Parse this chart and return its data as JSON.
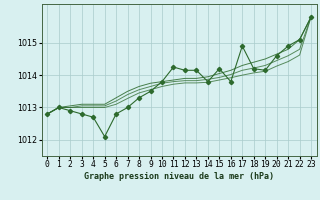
{
  "title": "Graphe pression niveau de la mer (hPa)",
  "x_values": [
    0,
    1,
    2,
    3,
    4,
    5,
    6,
    7,
    8,
    9,
    10,
    11,
    12,
    13,
    14,
    15,
    16,
    17,
    18,
    19,
    20,
    21,
    22,
    23
  ],
  "y_main": [
    1012.8,
    1013.0,
    1012.9,
    1012.8,
    1012.7,
    1012.1,
    1012.8,
    1013.0,
    1013.3,
    1013.5,
    1013.8,
    1014.25,
    1014.15,
    1014.15,
    1013.8,
    1014.2,
    1013.8,
    1014.9,
    1014.2,
    1014.15,
    1014.6,
    1014.9,
    1015.1,
    1015.8
  ],
  "y_smooth1": [
    1012.8,
    1013.0,
    1013.05,
    1013.1,
    1013.1,
    1013.1,
    1013.3,
    1013.5,
    1013.65,
    1013.75,
    1013.8,
    1013.85,
    1013.9,
    1013.9,
    1013.95,
    1014.05,
    1014.15,
    1014.3,
    1014.4,
    1014.5,
    1014.65,
    1014.8,
    1015.1,
    1015.8
  ],
  "y_smooth2": [
    1012.8,
    1013.0,
    1013.0,
    1013.05,
    1013.05,
    1013.05,
    1013.2,
    1013.4,
    1013.55,
    1013.65,
    1013.75,
    1013.8,
    1013.83,
    1013.83,
    1013.87,
    1013.93,
    1014.02,
    1014.15,
    1014.22,
    1014.3,
    1014.45,
    1014.6,
    1014.8,
    1015.8
  ],
  "y_smooth3": [
    1012.8,
    1013.0,
    1013.0,
    1013.0,
    1013.0,
    1013.0,
    1013.1,
    1013.28,
    1013.45,
    1013.55,
    1013.65,
    1013.72,
    1013.76,
    1013.76,
    1013.78,
    1013.85,
    1013.92,
    1014.0,
    1014.07,
    1014.12,
    1014.28,
    1014.42,
    1014.62,
    1015.8
  ],
  "line_color": "#2d6a2d",
  "bg_color": "#d8f0f0",
  "grid_color": "#aacccc",
  "ylim": [
    1011.5,
    1016.2
  ],
  "yticks": [
    1012,
    1013,
    1014,
    1015
  ],
  "xlim": [
    -0.5,
    23.5
  ],
  "label_fontsize": 6.0,
  "tick_fontsize": 5.8
}
